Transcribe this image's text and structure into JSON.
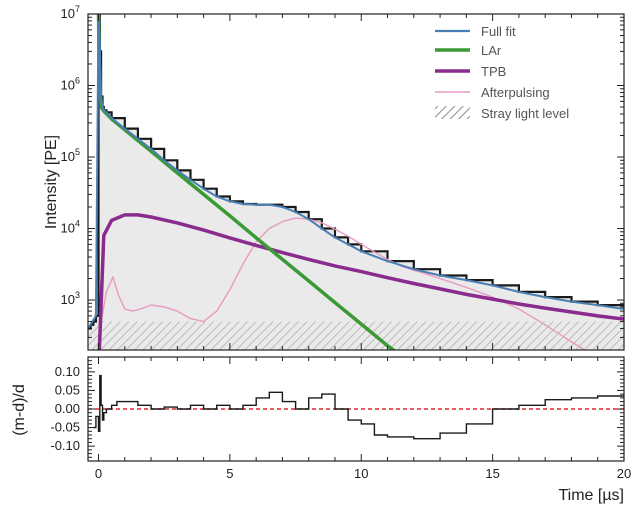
{
  "chart_data": [
    {
      "type": "line",
      "ylabel": "Intensity [PE]",
      "yscale": "log",
      "xlim": [
        -0.4,
        20
      ],
      "ylim": [
        200,
        10000000
      ],
      "yticks": [
        {
          "value": 1000,
          "base": "10",
          "exp": "3"
        },
        {
          "value": 10000,
          "base": "10",
          "exp": "4"
        },
        {
          "value": 100000,
          "base": "10",
          "exp": "5"
        },
        {
          "value": 1000000,
          "base": "10",
          "exp": "6"
        },
        {
          "value": 10000000,
          "base": "10",
          "exp": "7"
        }
      ],
      "legend_position": "top-right",
      "legend": [
        {
          "label": "Full fit",
          "color": "#4a7fb5",
          "kind": "line"
        },
        {
          "label": "LAr",
          "color": "#3a9a35",
          "kind": "line"
        },
        {
          "label": "TPB",
          "color": "#8a2b8e",
          "kind": "line"
        },
        {
          "label": "Afterpulsing",
          "color": "#e79ac0",
          "kind": "line"
        },
        {
          "label": "Stray light level",
          "color": "#888888",
          "kind": "hatch"
        }
      ],
      "stray_light_level": 500,
      "data_hist": {
        "x": [
          -0.4,
          -0.3,
          -0.2,
          -0.1,
          0.0,
          0.05,
          0.1,
          0.15,
          0.2,
          0.3,
          0.5,
          1.0,
          1.5,
          2.0,
          2.5,
          3.0,
          3.5,
          4.0,
          4.5,
          5.0,
          5.5,
          6.0,
          6.5,
          7.0,
          7.5,
          8.0,
          8.5,
          9.0,
          9.5,
          10.0,
          11.0,
          12.0,
          13.0,
          14.0,
          15.0,
          16.0,
          17.0,
          18.0,
          19.0,
          20.0
        ],
        "y": [
          400,
          450,
          500,
          600,
          10000000,
          3000000,
          700000,
          500000,
          450000,
          420000,
          350000,
          250000,
          180000,
          130000,
          90000,
          65000,
          48000,
          36000,
          28000,
          24000,
          22000,
          21500,
          21500,
          20000,
          17000,
          13500,
          10000,
          7500,
          6000,
          4800,
          3500,
          2700,
          2200,
          1900,
          1600,
          1300,
          1100,
          950,
          850,
          750
        ]
      },
      "series": [
        {
          "name": "Full fit",
          "color": "#4a7fb5",
          "x": [
            -0.4,
            -0.1,
            0.0,
            0.05,
            0.1,
            0.15,
            0.2,
            0.3,
            0.5,
            1.0,
            1.5,
            2.0,
            2.5,
            3.0,
            3.5,
            4.0,
            4.5,
            5.0,
            5.5,
            6.0,
            6.5,
            7.0,
            7.5,
            8.0,
            8.5,
            9.0,
            9.5,
            10.0,
            11.0,
            12.0,
            13.0,
            14.0,
            15.0,
            16.0,
            17.0,
            18.0,
            19.0,
            20.0
          ],
          "y": [
            400,
            600,
            10000000,
            3000000,
            700000,
            500000,
            450000,
            420000,
            350000,
            250000,
            180000,
            130000,
            90000,
            65000,
            48000,
            36000,
            28000,
            24000,
            22000,
            21500,
            21500,
            20000,
            17000,
            13500,
            10000,
            7500,
            6000,
            4800,
            3500,
            2700,
            2200,
            1900,
            1600,
            1300,
            1100,
            950,
            850,
            750
          ]
        },
        {
          "name": "LAr",
          "color": "#3a9a35",
          "x": [
            0.0,
            0.02,
            0.05,
            0.1,
            0.2,
            0.5,
            1.0,
            2.0,
            3.0,
            4.0,
            5.0,
            6.0,
            7.0,
            8.0,
            9.0,
            10.0,
            11.0,
            11.8
          ],
          "y": [
            10000000,
            3000000,
            1000000,
            500000,
            440000,
            340000,
            240000,
            120000,
            60000,
            30000,
            15000,
            7400,
            3700,
            1850,
            920,
            460,
            230,
            140
          ]
        },
        {
          "name": "TPB",
          "color": "#8a2b8e",
          "x": [
            0.0,
            0.2,
            0.5,
            1.0,
            1.5,
            2.0,
            3.0,
            4.0,
            5.0,
            6.0,
            7.0,
            8.0,
            9.0,
            10.0,
            11.0,
            12.0,
            13.0,
            14.0,
            15.0,
            16.0,
            17.0,
            18.0,
            19.0,
            20.0
          ],
          "y": [
            100,
            8000,
            13000,
            15500,
            15500,
            14500,
            12000,
            9500,
            7400,
            5800,
            4600,
            3700,
            3000,
            2500,
            2050,
            1700,
            1430,
            1200,
            1030,
            880,
            770,
            680,
            600,
            540
          ]
        },
        {
          "name": "Afterpulsing",
          "color": "#e79ac0",
          "x": [
            0.0,
            0.3,
            0.55,
            0.75,
            1.0,
            1.3,
            1.6,
            2.0,
            2.5,
            3.0,
            3.5,
            4.0,
            4.5,
            5.0,
            5.5,
            6.0,
            6.5,
            7.0,
            7.5,
            8.0,
            8.5,
            9.0,
            9.5,
            10.0,
            10.5,
            11.0,
            11.5,
            12.0,
            12.5,
            13.0,
            14.0,
            15.0,
            16.0,
            17.0,
            18.0,
            18.5
          ],
          "y": [
            300,
            1300,
            2100,
            1200,
            750,
            700,
            750,
            850,
            800,
            700,
            550,
            500,
            700,
            1400,
            3200,
            6500,
            10000,
            12500,
            14000,
            13500,
            12000,
            9800,
            7800,
            6000,
            4700,
            3700,
            3000,
            2600,
            2300,
            2000,
            1500,
            1100,
            750,
            450,
            260,
            200
          ]
        }
      ]
    },
    {
      "type": "line",
      "ylabel": "(m-d)/d",
      "xlabel": "Time [µs]",
      "xlim": [
        -0.4,
        20
      ],
      "ylim": [
        -0.14,
        0.14
      ],
      "xticks": [
        0,
        5,
        10,
        15,
        20
      ],
      "yticks": [
        "0.10",
        "0.05",
        "0.00",
        "-0.05",
        "-0.10"
      ],
      "zero_line_color": "#e0282e",
      "residual": {
        "x": [
          -0.2,
          -0.1,
          0.0,
          0.05,
          0.1,
          0.15,
          0.2,
          0.3,
          0.5,
          0.7,
          1.0,
          1.5,
          2.0,
          2.5,
          3.0,
          3.5,
          4.0,
          4.5,
          5.0,
          5.5,
          6.0,
          6.5,
          7.0,
          7.5,
          8.0,
          8.5,
          9.0,
          9.5,
          10.0,
          10.5,
          11.0,
          12.0,
          13.0,
          14.0,
          15.0,
          16.0,
          17.0,
          18.0,
          19.0,
          20.0
        ],
        "y": [
          -0.05,
          -0.02,
          -0.06,
          0.09,
          0.01,
          -0.03,
          -0.01,
          0.0,
          0.01,
          0.02,
          0.02,
          0.01,
          0.0,
          0.005,
          0.0,
          0.01,
          0.0,
          0.01,
          0.0,
          0.01,
          0.03,
          0.045,
          0.02,
          0.0,
          0.03,
          0.04,
          0.0,
          -0.03,
          -0.04,
          -0.07,
          -0.075,
          -0.08,
          -0.065,
          -0.04,
          0.0,
          0.01,
          0.025,
          0.03,
          0.035,
          0.04
        ]
      }
    }
  ]
}
